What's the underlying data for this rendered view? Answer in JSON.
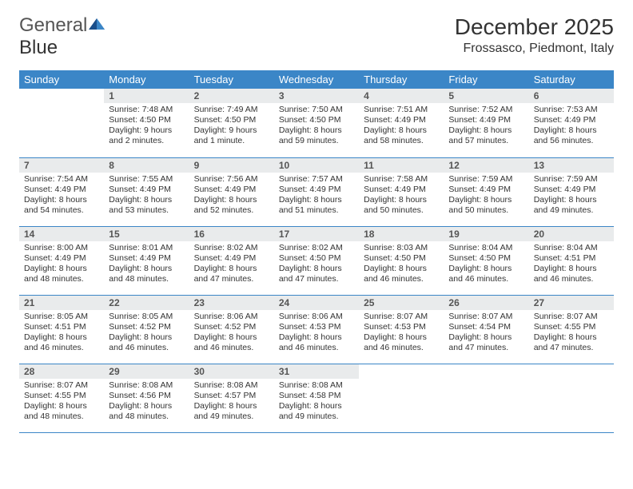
{
  "logo": {
    "text1": "General",
    "text2": "Blue"
  },
  "title": "December 2025",
  "location": "Frossasco, Piedmont, Italy",
  "colors": {
    "header_bg": "#3b86c7",
    "header_text": "#ffffff",
    "daynum_bg": "#e9ebec",
    "border": "#3b86c7",
    "logo_dark": "#1a4e8a",
    "logo_light": "#3b86c7"
  },
  "weekdays": [
    "Sunday",
    "Monday",
    "Tuesday",
    "Wednesday",
    "Thursday",
    "Friday",
    "Saturday"
  ],
  "weeks": [
    [
      {
        "n": "",
        "sr": "",
        "ss": "",
        "dl": ""
      },
      {
        "n": "1",
        "sr": "Sunrise: 7:48 AM",
        "ss": "Sunset: 4:50 PM",
        "dl": "Daylight: 9 hours and 2 minutes."
      },
      {
        "n": "2",
        "sr": "Sunrise: 7:49 AM",
        "ss": "Sunset: 4:50 PM",
        "dl": "Daylight: 9 hours and 1 minute."
      },
      {
        "n": "3",
        "sr": "Sunrise: 7:50 AM",
        "ss": "Sunset: 4:50 PM",
        "dl": "Daylight: 8 hours and 59 minutes."
      },
      {
        "n": "4",
        "sr": "Sunrise: 7:51 AM",
        "ss": "Sunset: 4:49 PM",
        "dl": "Daylight: 8 hours and 58 minutes."
      },
      {
        "n": "5",
        "sr": "Sunrise: 7:52 AM",
        "ss": "Sunset: 4:49 PM",
        "dl": "Daylight: 8 hours and 57 minutes."
      },
      {
        "n": "6",
        "sr": "Sunrise: 7:53 AM",
        "ss": "Sunset: 4:49 PM",
        "dl": "Daylight: 8 hours and 56 minutes."
      }
    ],
    [
      {
        "n": "7",
        "sr": "Sunrise: 7:54 AM",
        "ss": "Sunset: 4:49 PM",
        "dl": "Daylight: 8 hours and 54 minutes."
      },
      {
        "n": "8",
        "sr": "Sunrise: 7:55 AM",
        "ss": "Sunset: 4:49 PM",
        "dl": "Daylight: 8 hours and 53 minutes."
      },
      {
        "n": "9",
        "sr": "Sunrise: 7:56 AM",
        "ss": "Sunset: 4:49 PM",
        "dl": "Daylight: 8 hours and 52 minutes."
      },
      {
        "n": "10",
        "sr": "Sunrise: 7:57 AM",
        "ss": "Sunset: 4:49 PM",
        "dl": "Daylight: 8 hours and 51 minutes."
      },
      {
        "n": "11",
        "sr": "Sunrise: 7:58 AM",
        "ss": "Sunset: 4:49 PM",
        "dl": "Daylight: 8 hours and 50 minutes."
      },
      {
        "n": "12",
        "sr": "Sunrise: 7:59 AM",
        "ss": "Sunset: 4:49 PM",
        "dl": "Daylight: 8 hours and 50 minutes."
      },
      {
        "n": "13",
        "sr": "Sunrise: 7:59 AM",
        "ss": "Sunset: 4:49 PM",
        "dl": "Daylight: 8 hours and 49 minutes."
      }
    ],
    [
      {
        "n": "14",
        "sr": "Sunrise: 8:00 AM",
        "ss": "Sunset: 4:49 PM",
        "dl": "Daylight: 8 hours and 48 minutes."
      },
      {
        "n": "15",
        "sr": "Sunrise: 8:01 AM",
        "ss": "Sunset: 4:49 PM",
        "dl": "Daylight: 8 hours and 48 minutes."
      },
      {
        "n": "16",
        "sr": "Sunrise: 8:02 AM",
        "ss": "Sunset: 4:49 PM",
        "dl": "Daylight: 8 hours and 47 minutes."
      },
      {
        "n": "17",
        "sr": "Sunrise: 8:02 AM",
        "ss": "Sunset: 4:50 PM",
        "dl": "Daylight: 8 hours and 47 minutes."
      },
      {
        "n": "18",
        "sr": "Sunrise: 8:03 AM",
        "ss": "Sunset: 4:50 PM",
        "dl": "Daylight: 8 hours and 46 minutes."
      },
      {
        "n": "19",
        "sr": "Sunrise: 8:04 AM",
        "ss": "Sunset: 4:50 PM",
        "dl": "Daylight: 8 hours and 46 minutes."
      },
      {
        "n": "20",
        "sr": "Sunrise: 8:04 AM",
        "ss": "Sunset: 4:51 PM",
        "dl": "Daylight: 8 hours and 46 minutes."
      }
    ],
    [
      {
        "n": "21",
        "sr": "Sunrise: 8:05 AM",
        "ss": "Sunset: 4:51 PM",
        "dl": "Daylight: 8 hours and 46 minutes."
      },
      {
        "n": "22",
        "sr": "Sunrise: 8:05 AM",
        "ss": "Sunset: 4:52 PM",
        "dl": "Daylight: 8 hours and 46 minutes."
      },
      {
        "n": "23",
        "sr": "Sunrise: 8:06 AM",
        "ss": "Sunset: 4:52 PM",
        "dl": "Daylight: 8 hours and 46 minutes."
      },
      {
        "n": "24",
        "sr": "Sunrise: 8:06 AM",
        "ss": "Sunset: 4:53 PM",
        "dl": "Daylight: 8 hours and 46 minutes."
      },
      {
        "n": "25",
        "sr": "Sunrise: 8:07 AM",
        "ss": "Sunset: 4:53 PM",
        "dl": "Daylight: 8 hours and 46 minutes."
      },
      {
        "n": "26",
        "sr": "Sunrise: 8:07 AM",
        "ss": "Sunset: 4:54 PM",
        "dl": "Daylight: 8 hours and 47 minutes."
      },
      {
        "n": "27",
        "sr": "Sunrise: 8:07 AM",
        "ss": "Sunset: 4:55 PM",
        "dl": "Daylight: 8 hours and 47 minutes."
      }
    ],
    [
      {
        "n": "28",
        "sr": "Sunrise: 8:07 AM",
        "ss": "Sunset: 4:55 PM",
        "dl": "Daylight: 8 hours and 48 minutes."
      },
      {
        "n": "29",
        "sr": "Sunrise: 8:08 AM",
        "ss": "Sunset: 4:56 PM",
        "dl": "Daylight: 8 hours and 48 minutes."
      },
      {
        "n": "30",
        "sr": "Sunrise: 8:08 AM",
        "ss": "Sunset: 4:57 PM",
        "dl": "Daylight: 8 hours and 49 minutes."
      },
      {
        "n": "31",
        "sr": "Sunrise: 8:08 AM",
        "ss": "Sunset: 4:58 PM",
        "dl": "Daylight: 8 hours and 49 minutes."
      },
      {
        "n": "",
        "sr": "",
        "ss": "",
        "dl": ""
      },
      {
        "n": "",
        "sr": "",
        "ss": "",
        "dl": ""
      },
      {
        "n": "",
        "sr": "",
        "ss": "",
        "dl": ""
      }
    ]
  ]
}
